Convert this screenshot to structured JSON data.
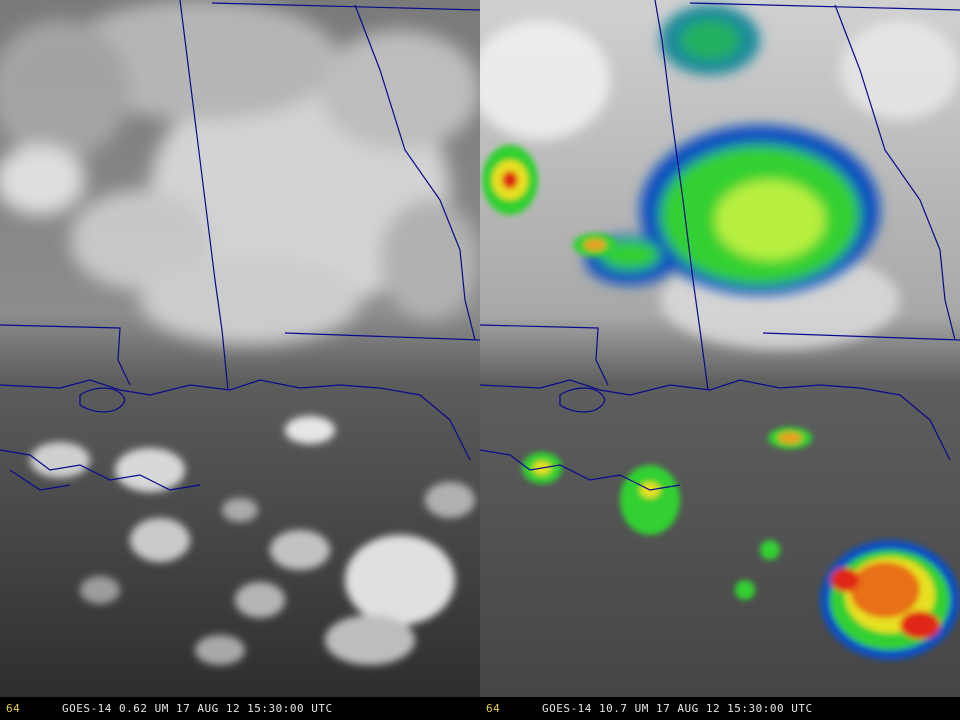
{
  "left_panel": {
    "frame_number": "64",
    "caption": "GOES-14 0.62 UM 17 AUG 12 15:30:00 UTC"
  },
  "right_panel": {
    "frame_number": "64",
    "caption": "GOES-14 10.7 UM 17 AUG 12 15:30:00 UTC"
  },
  "colors": {
    "map_boundary": "#0a0a8c",
    "caption_frame_number": "#e8d24a",
    "caption_text": "#e6e6e6",
    "ir_cold_top_red": "#e02818",
    "ir_yellow": "#e8e020",
    "ir_green": "#30d030",
    "ir_blue": "#1050c0"
  }
}
